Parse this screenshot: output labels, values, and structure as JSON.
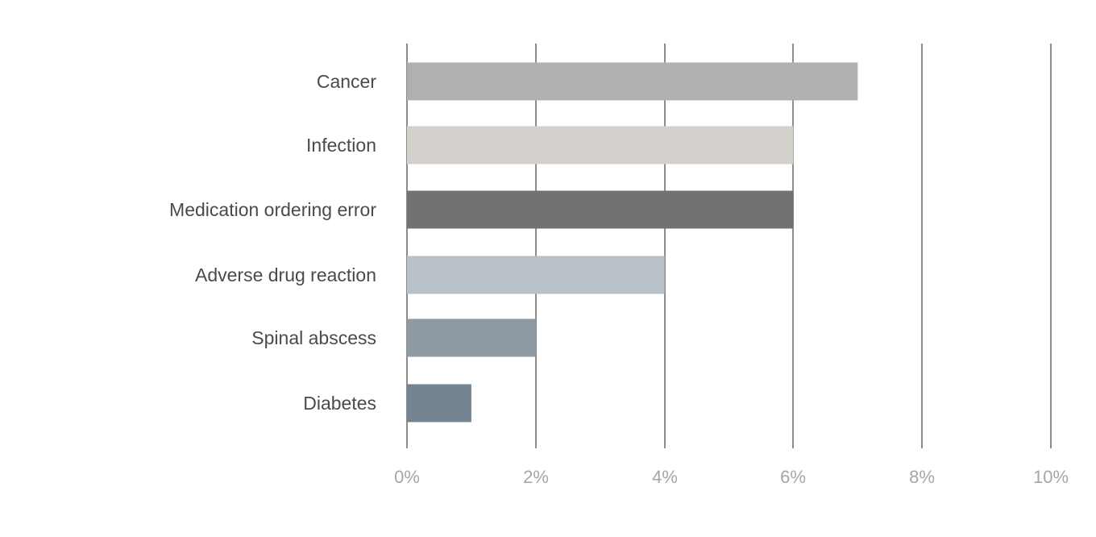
{
  "chart_data": {
    "type": "bar",
    "orientation": "horizontal",
    "title": "",
    "xlabel": "",
    "ylabel": "",
    "categories": [
      "Cancer",
      "Infection",
      "Medication ordering error",
      "Adverse drug reaction",
      "Spinal abscess",
      "Diabetes"
    ],
    "values": [
      7,
      6,
      6,
      4,
      2,
      1
    ],
    "value_unit": "%",
    "colors": [
      "#b0b0b0",
      "#d4d0cb",
      "#717370",
      "#b7c1c7",
      "#8e9ba5",
      "#738391"
    ],
    "xlim": [
      0,
      10
    ],
    "ticks": [
      0,
      2,
      4,
      6,
      8,
      10
    ],
    "tick_labels": [
      "0%",
      "2%",
      "4%",
      "6%",
      "8%",
      "10%"
    ],
    "grid": "vertical",
    "legend": "none"
  }
}
